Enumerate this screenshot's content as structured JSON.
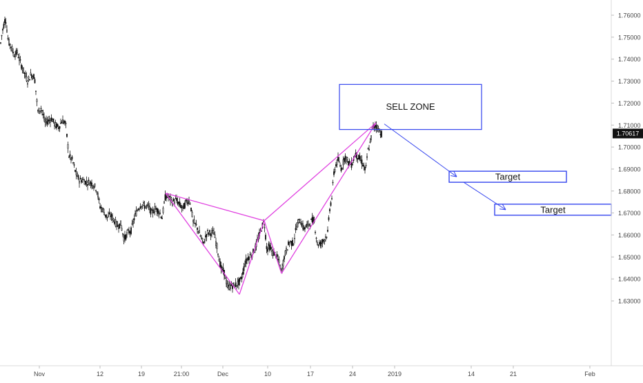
{
  "chart_data": {
    "type": "candlestick",
    "y_axis": {
      "ticks": [
        "1.76000",
        "1.75000",
        "1.74000",
        "1.73000",
        "1.72000",
        "1.71000",
        "1.70000",
        "1.69000",
        "1.68000",
        "1.67000",
        "1.66000",
        "1.65000",
        "1.64000",
        "1.63000"
      ],
      "tick_values": [
        1.76,
        1.75,
        1.74,
        1.73,
        1.72,
        1.71,
        1.7,
        1.69,
        1.68,
        1.67,
        1.66,
        1.65,
        1.64,
        1.63
      ],
      "range": [
        1.6275,
        1.7655
      ]
    },
    "x_axis": {
      "labels": [
        "Nov",
        "12",
        "19",
        "21:00",
        "Dec",
        "10",
        "17",
        "24",
        "2019",
        "14",
        "21",
        "Feb"
      ]
    },
    "last_price": {
      "label": "1.70617",
      "value": 1.70617
    },
    "price_path": [
      [
        0,
        1.745
      ],
      [
        3,
        1.752
      ],
      [
        8,
        1.759
      ],
      [
        12,
        1.748
      ],
      [
        16,
        1.746
      ],
      [
        20,
        1.742
      ],
      [
        25,
        1.743
      ],
      [
        30,
        1.738
      ],
      [
        35,
        1.734
      ],
      [
        40,
        1.73
      ],
      [
        45,
        1.733
      ],
      [
        50,
        1.732
      ],
      [
        55,
        1.716
      ],
      [
        60,
        1.718
      ],
      [
        65,
        1.711
      ],
      [
        70,
        1.712
      ],
      [
        75,
        1.713
      ],
      [
        80,
        1.71
      ],
      [
        85,
        1.709
      ],
      [
        90,
        1.712
      ],
      [
        95,
        1.711
      ],
      [
        100,
        1.696
      ],
      [
        105,
        1.694
      ],
      [
        110,
        1.688
      ],
      [
        115,
        1.685
      ],
      [
        120,
        1.685
      ],
      [
        125,
        1.684
      ],
      [
        130,
        1.684
      ],
      [
        135,
        1.683
      ],
      [
        140,
        1.681
      ],
      [
        145,
        1.673
      ],
      [
        150,
        1.671
      ],
      [
        155,
        1.668
      ],
      [
        160,
        1.669
      ],
      [
        165,
        1.667
      ],
      [
        170,
        1.664
      ],
      [
        175,
        1.665
      ],
      [
        180,
        1.658
      ],
      [
        185,
        1.661
      ],
      [
        190,
        1.662
      ],
      [
        195,
        1.668
      ],
      [
        200,
        1.672
      ],
      [
        205,
        1.674
      ],
      [
        210,
        1.673
      ],
      [
        215,
        1.673
      ],
      [
        220,
        1.67
      ],
      [
        225,
        1.672
      ],
      [
        230,
        1.671
      ],
      [
        235,
        1.668
      ],
      [
        240,
        1.678
      ],
      [
        245,
        1.677
      ],
      [
        250,
        1.675
      ],
      [
        255,
        1.676
      ],
      [
        260,
        1.674
      ],
      [
        265,
        1.672
      ],
      [
        270,
        1.675
      ],
      [
        275,
        1.676
      ],
      [
        280,
        1.666
      ],
      [
        285,
        1.664
      ],
      [
        290,
        1.66
      ],
      [
        295,
        1.656
      ],
      [
        300,
        1.661
      ],
      [
        305,
        1.661
      ],
      [
        310,
        1.661
      ],
      [
        315,
        1.654
      ],
      [
        320,
        1.645
      ],
      [
        325,
        1.643
      ],
      [
        330,
        1.636
      ],
      [
        335,
        1.637
      ],
      [
        340,
        1.637
      ],
      [
        345,
        1.638
      ],
      [
        350,
        1.64
      ],
      [
        355,
        1.647
      ],
      [
        360,
        1.65
      ],
      [
        365,
        1.651
      ],
      [
        370,
        1.654
      ],
      [
        375,
        1.659
      ],
      [
        380,
        1.664
      ],
      [
        383,
        1.666
      ],
      [
        387,
        1.653
      ],
      [
        390,
        1.655
      ],
      [
        395,
        1.652
      ],
      [
        400,
        1.651
      ],
      [
        405,
        1.647
      ],
      [
        408,
        1.643
      ],
      [
        412,
        1.65
      ],
      [
        416,
        1.654
      ],
      [
        420,
        1.657
      ],
      [
        425,
        1.656
      ],
      [
        430,
        1.664
      ],
      [
        435,
        1.667
      ],
      [
        440,
        1.663
      ],
      [
        445,
        1.664
      ],
      [
        450,
        1.666
      ],
      [
        455,
        1.667
      ],
      [
        460,
        1.656
      ],
      [
        465,
        1.656
      ],
      [
        470,
        1.658
      ],
      [
        475,
        1.661
      ],
      [
        478,
        1.672
      ],
      [
        481,
        1.677
      ],
      [
        484,
        1.688
      ],
      [
        487,
        1.692
      ],
      [
        490,
        1.694
      ],
      [
        495,
        1.69
      ],
      [
        500,
        1.696
      ],
      [
        505,
        1.693
      ],
      [
        510,
        1.692
      ],
      [
        515,
        1.697
      ],
      [
        520,
        1.695
      ],
      [
        525,
        1.693
      ],
      [
        530,
        1.689
      ],
      [
        533,
        1.698
      ],
      [
        537,
        1.702
      ],
      [
        540,
        1.709
      ],
      [
        545,
        1.71
      ],
      [
        549,
        1.708
      ],
      [
        553,
        1.706
      ]
    ],
    "harmonic_pattern": {
      "points": [
        [
          240,
          1.679
        ],
        [
          347,
          1.633
        ],
        [
          383,
          1.6665
        ],
        [
          408,
          1.6425
        ],
        [
          545,
          1.711
        ]
      ],
      "color": "#e040e0"
    },
    "annotations": {
      "sell_zone": {
        "label": "SELL ZONE",
        "price_top": 1.7285,
        "price_bottom": 1.708
      },
      "targets": [
        {
          "label": "Target",
          "price": 1.6865
        },
        {
          "label": "Target",
          "price": 1.6715
        }
      ],
      "color": "#3344ee"
    }
  }
}
